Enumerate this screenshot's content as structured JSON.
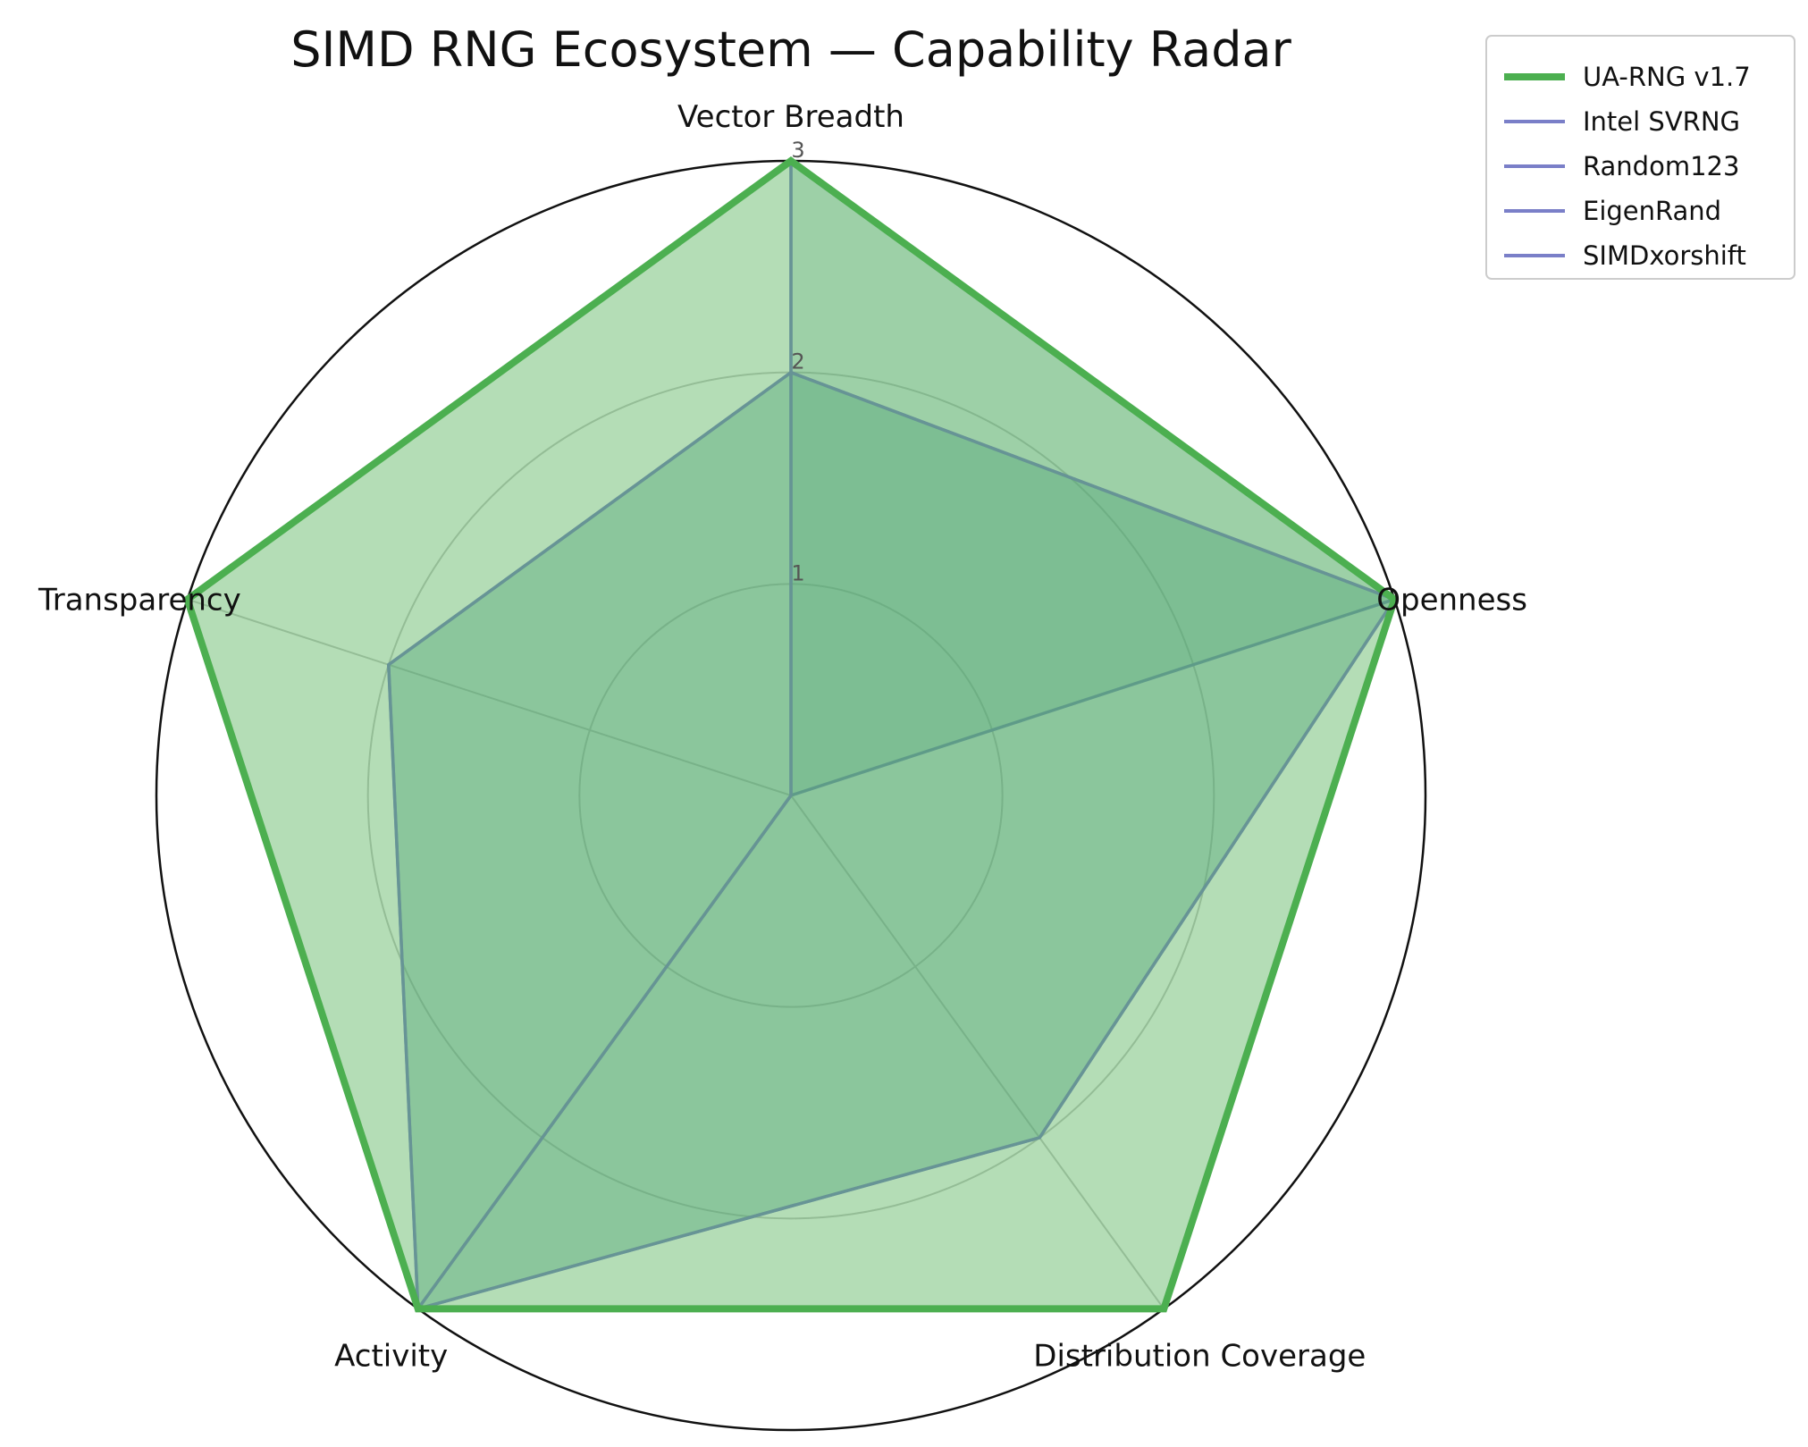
{
  "chart_data": {
    "type": "radar",
    "title": "SIMD RNG Ecosystem — Capability Radar",
    "axes": [
      "Vector Breadth",
      "Openness",
      "Distribution Coverage",
      "Activity",
      "Transparency"
    ],
    "rlim": [
      0,
      3
    ],
    "rticks": [
      "1",
      "2",
      "3"
    ],
    "rtick_values": [
      1,
      2,
      3
    ],
    "grid": true,
    "legend_position": "top-right",
    "series": [
      {
        "name": "UA-RNG v1.7",
        "values": [
          3,
          3,
          3,
          3,
          3
        ],
        "color": "#4caf50",
        "fill": "#4caf50",
        "highlight": true
      },
      {
        "name": "Intel SVRNG",
        "values": [
          3,
          3,
          0,
          3,
          0
        ],
        "color": "#7a7fc8",
        "fill": "#4f9a8c",
        "highlight": false
      },
      {
        "name": "Random123",
        "values": [
          2,
          3,
          2,
          3,
          2
        ],
        "color": "#7a7fc8",
        "fill": "#4f9a8c",
        "highlight": false
      },
      {
        "name": "EigenRand",
        "values": [
          2,
          3,
          2,
          3,
          2
        ],
        "color": "#7a7fc8",
        "fill": "#4f9a8c",
        "highlight": false
      },
      {
        "name": "SIMDxorshift",
        "values": [
          3,
          0,
          0,
          3,
          0
        ],
        "color": "#7a7fc8",
        "fill": "#4f9a8c",
        "highlight": false
      }
    ]
  }
}
